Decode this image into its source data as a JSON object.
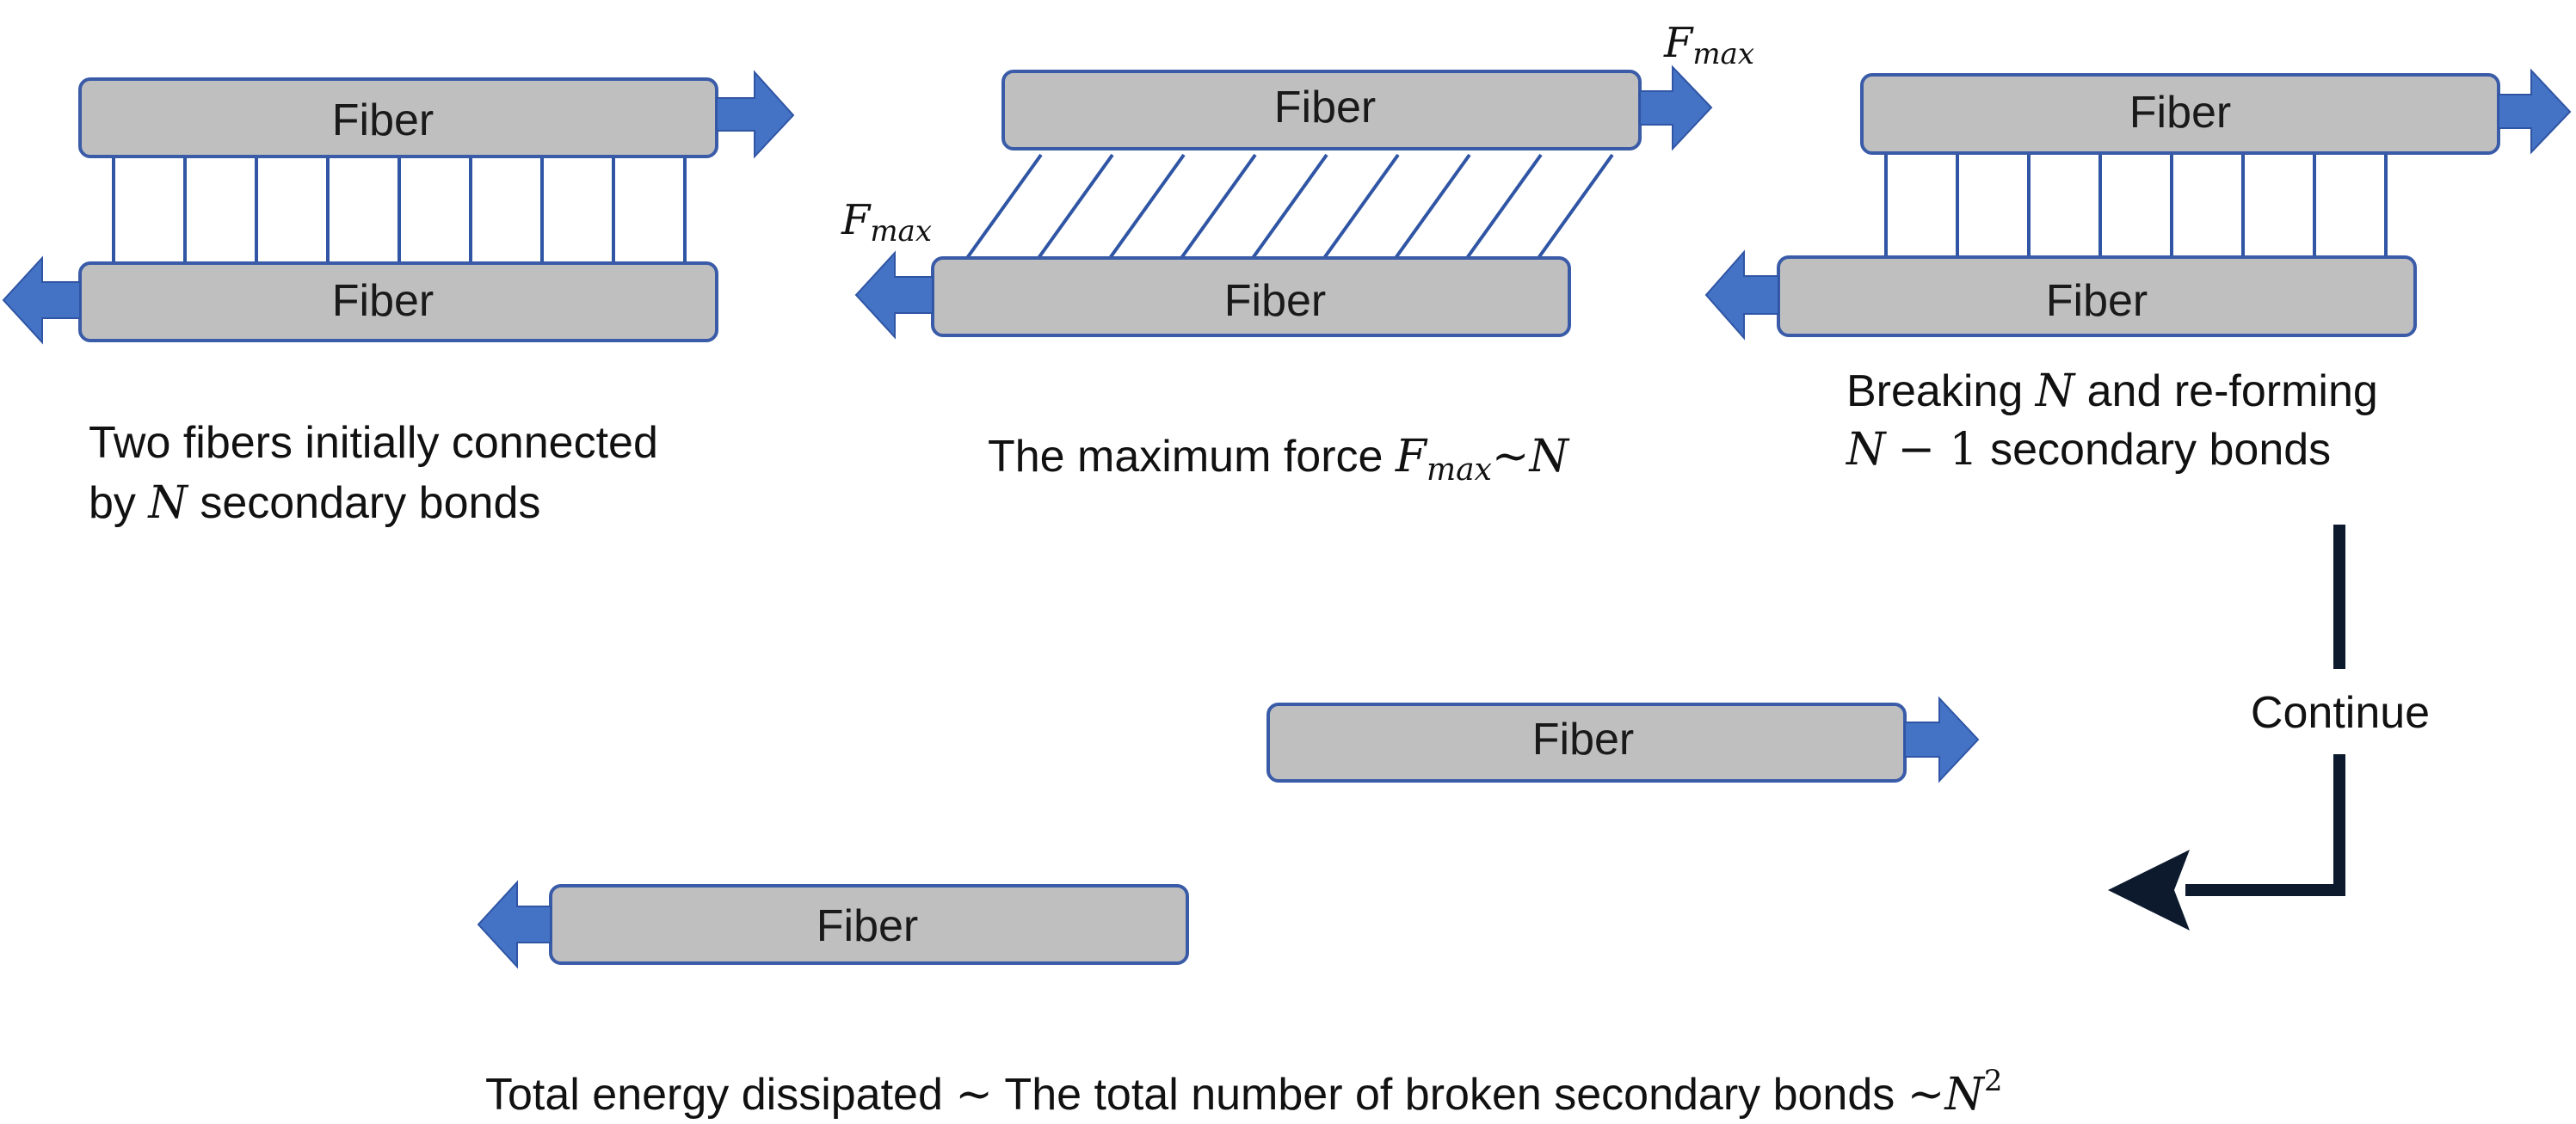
{
  "fiber_label": "Fiber",
  "symbols": {
    "N": "N",
    "F": "F",
    "max": "max",
    "tilde": "~",
    "minus_one": "− 1",
    "squared": "2"
  },
  "panel1": {
    "caption_line1": "Two fibers initially connected",
    "caption_line2_pre": "by ",
    "caption_line2_post": " secondary bonds"
  },
  "panel2": {
    "caption_pre": "The maximum force "
  },
  "panel3": {
    "caption_line1_pre": "Breaking ",
    "caption_line1_post": " and re-forming",
    "caption_line2_post": " secondary bonds"
  },
  "flow": {
    "continue_label": "Continue"
  },
  "bottom": {
    "caption_pre": "Total energy dissipated ",
    "caption_mid": " The total number of broken secondary bonds "
  },
  "colors": {
    "fiber_fill": "#bfbfbf",
    "fiber_stroke": "#3a5ba8",
    "arrow": "#4472c4",
    "bond": "#2f55a4",
    "flow_arrow": "#0d1a2e"
  }
}
